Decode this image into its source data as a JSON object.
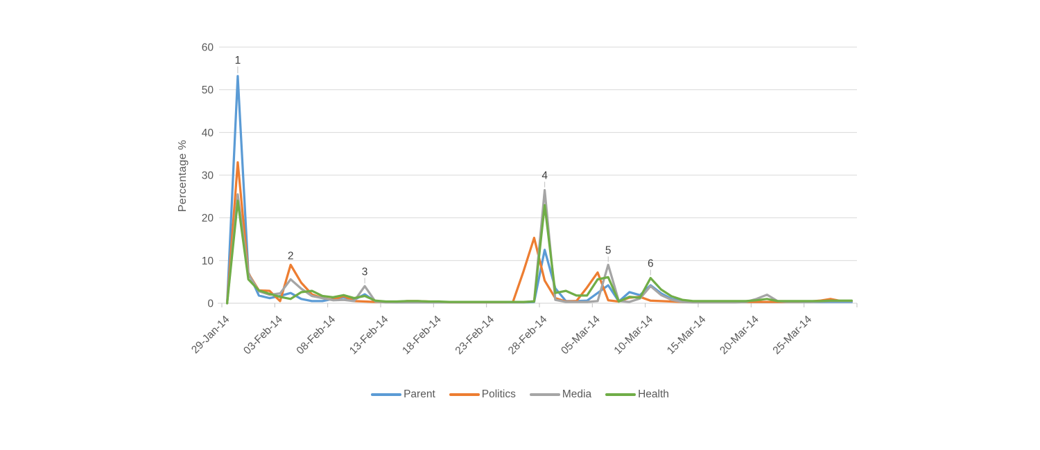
{
  "chart_data": {
    "type": "line",
    "title": "",
    "xlabel": "",
    "ylabel": "Percentage %",
    "ylim": [
      0,
      60
    ],
    "yticks": [
      0,
      10,
      20,
      30,
      40,
      50,
      60
    ],
    "grid": "horizontal",
    "legend_position": "bottom",
    "xtick_labels": [
      "29-Jan-14",
      "03-Feb-14",
      "08-Feb-14",
      "13-Feb-14",
      "18-Feb-14",
      "23-Feb-14",
      "28-Feb-14",
      "05-Mar-14",
      "10-Mar-14",
      "15-Mar-14",
      "20-Mar-14",
      "25-Mar-14"
    ],
    "xtick_day_indices": [
      0,
      5,
      10,
      15,
      20,
      25,
      30,
      35,
      40,
      45,
      50,
      55
    ],
    "dates": [
      "29-Jan-14",
      "30-Jan-14",
      "31-Jan-14",
      "01-Feb-14",
      "02-Feb-14",
      "03-Feb-14",
      "04-Feb-14",
      "05-Feb-14",
      "06-Feb-14",
      "07-Feb-14",
      "08-Feb-14",
      "09-Feb-14",
      "10-Feb-14",
      "11-Feb-14",
      "12-Feb-14",
      "13-Feb-14",
      "14-Feb-14",
      "15-Feb-14",
      "16-Feb-14",
      "17-Feb-14",
      "18-Feb-14",
      "19-Feb-14",
      "20-Feb-14",
      "21-Feb-14",
      "22-Feb-14",
      "23-Feb-14",
      "24-Feb-14",
      "25-Feb-14",
      "26-Feb-14",
      "27-Feb-14",
      "28-Feb-14",
      "01-Mar-14",
      "02-Mar-14",
      "03-Mar-14",
      "04-Mar-14",
      "05-Mar-14",
      "06-Mar-14",
      "07-Mar-14",
      "08-Mar-14",
      "09-Mar-14",
      "10-Mar-14",
      "11-Mar-14",
      "12-Mar-14",
      "13-Mar-14",
      "14-Mar-14",
      "15-Mar-14",
      "16-Mar-14",
      "17-Mar-14",
      "18-Mar-14",
      "19-Mar-14",
      "20-Mar-14",
      "21-Mar-14",
      "22-Mar-14",
      "23-Mar-14",
      "24-Mar-14",
      "25-Mar-14",
      "26-Mar-14",
      "27-Mar-14",
      "28-Mar-14",
      "29-Mar-14"
    ],
    "series": [
      {
        "name": "Parent",
        "color": "#5B9BD5",
        "values": [
          0,
          53.2,
          7.2,
          1.8,
          1.2,
          1.7,
          2.4,
          1.0,
          0.5,
          0.5,
          1.0,
          1.4,
          0.8,
          2.1,
          0.4,
          0.3,
          0.2,
          0.2,
          0.2,
          0.2,
          0.2,
          0.3,
          0.2,
          0.2,
          0.2,
          0.2,
          0.2,
          0.2,
          0.2,
          0.3,
          12.5,
          3.5,
          0.5,
          0.5,
          0.6,
          2.4,
          4.2,
          0.4,
          2.6,
          1.9,
          4.2,
          2.3,
          1.0,
          0.4,
          0.3,
          0.3,
          0.3,
          0.3,
          0.3,
          0.3,
          0.3,
          0.3,
          0.3,
          0.3,
          0.3,
          0.3,
          0.3,
          0.3,
          0.3,
          0.3
        ]
      },
      {
        "name": "Politics",
        "color": "#ED7D31",
        "values": [
          0,
          33.0,
          7.0,
          3.0,
          2.9,
          0.5,
          9.0,
          4.8,
          2.1,
          1.2,
          0.8,
          1.7,
          0.5,
          0.4,
          0.3,
          0.3,
          0.3,
          0.5,
          0.5,
          0.4,
          0.3,
          0.2,
          0.2,
          0.2,
          0.2,
          0.2,
          0.2,
          0.3,
          7.5,
          15.3,
          5.3,
          1.2,
          0.4,
          0.5,
          3.7,
          7.2,
          0.7,
          0.4,
          1.3,
          1.5,
          0.6,
          0.5,
          0.4,
          0.3,
          0.3,
          0.3,
          0.4,
          0.4,
          0.3,
          0.3,
          0.3,
          0.3,
          0.3,
          0.3,
          0.3,
          0.4,
          0.6,
          1.0,
          0.5,
          0.5
        ]
      },
      {
        "name": "Media",
        "color": "#A5A5A5",
        "values": [
          0,
          25.5,
          6.8,
          2.8,
          2.0,
          2.3,
          5.6,
          3.4,
          1.7,
          1.2,
          0.7,
          0.8,
          0.5,
          4.0,
          0.4,
          0.2,
          0.2,
          0.2,
          0.2,
          0.2,
          0.2,
          0.2,
          0.2,
          0.2,
          0.2,
          0.2,
          0.2,
          0.2,
          0.2,
          0.5,
          26.5,
          0.8,
          0.3,
          0.3,
          0.3,
          0.5,
          9.0,
          0.5,
          0.3,
          1.1,
          4.0,
          1.9,
          0.8,
          0.3,
          0.2,
          0.2,
          0.2,
          0.2,
          0.2,
          0.3,
          1.0,
          2.0,
          0.5,
          0.3,
          0.3,
          0.3,
          0.4,
          0.5,
          0.5,
          0.5
        ]
      },
      {
        "name": "Health",
        "color": "#70AD47",
        "values": [
          0,
          24.0,
          5.6,
          3.0,
          2.2,
          1.5,
          1.0,
          2.6,
          2.9,
          1.7,
          1.4,
          1.9,
          1.2,
          1.7,
          0.6,
          0.4,
          0.4,
          0.5,
          0.5,
          0.4,
          0.4,
          0.3,
          0.3,
          0.3,
          0.3,
          0.3,
          0.3,
          0.3,
          0.3,
          0.4,
          23.0,
          2.4,
          2.9,
          1.8,
          1.8,
          5.6,
          6.1,
          0.4,
          1.5,
          1.3,
          5.9,
          3.2,
          1.6,
          0.8,
          0.5,
          0.5,
          0.5,
          0.5,
          0.5,
          0.5,
          0.7,
          1.0,
          0.5,
          0.5,
          0.5,
          0.5,
          0.5,
          0.6,
          0.6,
          0.6
        ]
      }
    ],
    "annotations": [
      {
        "label": "1",
        "series": "Parent",
        "date": "30-Jan-14",
        "day": 1,
        "value": 53.2
      },
      {
        "label": "2",
        "series": "Politics",
        "date": "04-Feb-14",
        "day": 6,
        "value": 9.0
      },
      {
        "label": "3",
        "series": "Media",
        "date": "11-Feb-14",
        "day": 13,
        "value": 4.0
      },
      {
        "label": "4",
        "series": "Media",
        "date": "28-Feb-14",
        "day": 30,
        "value": 26.5
      },
      {
        "label": "5",
        "series": "Media",
        "date": "06-Mar-14",
        "day": 36,
        "value": 9.0
      },
      {
        "label": "6",
        "series": "Health",
        "date": "10-Mar-14",
        "day": 40,
        "value": 5.9
      }
    ],
    "colors": {
      "gridline": "#D9D9D9",
      "axis_line": "#D9D9D9",
      "tick_mark": "#BFBFBF",
      "tick_text": "#595959",
      "annotation_text": "#404040",
      "annotation_leader": "#BFBFBF",
      "background": "#FFFFFF"
    }
  }
}
